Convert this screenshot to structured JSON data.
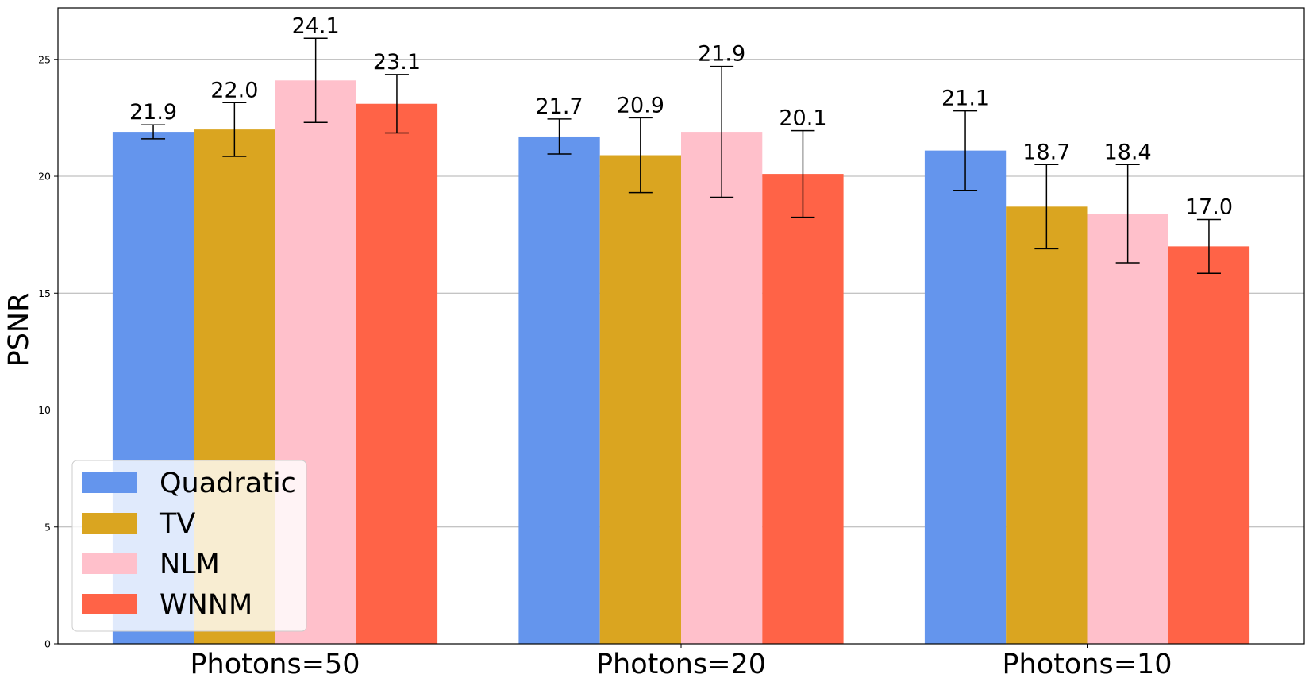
{
  "chart_data": {
    "type": "bar",
    "ylabel": "PSNR",
    "ylim": [
      0,
      27.2
    ],
    "yticks": [
      0,
      5,
      10,
      15,
      20,
      25
    ],
    "grid": "horizontal",
    "legend_position": "bottom-left",
    "categories": [
      "Photons=50",
      "Photons=20",
      "Photons=10"
    ],
    "series": [
      {
        "name": "Quadratic",
        "color": "#6495ED",
        "values": [
          21.9,
          21.7,
          21.1
        ],
        "errors": [
          0.3,
          0.75,
          1.7
        ],
        "labels": [
          "21.9",
          "21.7",
          "21.1"
        ]
      },
      {
        "name": "TV",
        "color": "#DAA520",
        "values": [
          22.0,
          20.9,
          18.7
        ],
        "errors": [
          1.15,
          1.6,
          1.8
        ],
        "labels": [
          "22.0",
          "20.9",
          "18.7"
        ]
      },
      {
        "name": "NLM",
        "color": "#FFC0CB",
        "values": [
          24.1,
          21.9,
          18.4
        ],
        "errors": [
          1.8,
          2.8,
          2.1
        ],
        "labels": [
          "24.1",
          "21.9",
          "18.4"
        ]
      },
      {
        "name": "WNNM",
        "color": "#FF6347",
        "values": [
          23.1,
          20.1,
          17.0
        ],
        "errors": [
          1.25,
          1.85,
          1.15
        ],
        "labels": [
          "23.1",
          "20.1",
          "17.0"
        ]
      }
    ]
  }
}
